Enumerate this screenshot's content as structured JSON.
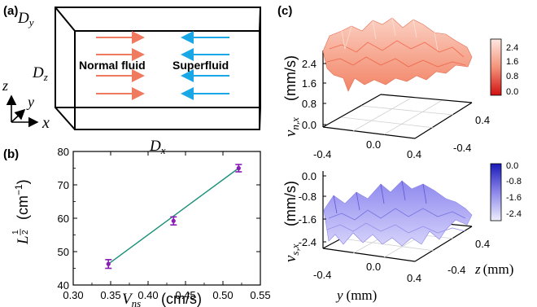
{
  "panel_a": {
    "label": "(a)",
    "box_labels": {
      "dy": "D",
      "dy_sub": "y",
      "dz": "D",
      "dz_sub": "z",
      "dx": "D",
      "dx_sub": "x"
    },
    "axis_labels": {
      "z": "z",
      "y": "y",
      "x": "x"
    },
    "normal_fluid": "Normal fluid",
    "superfluid": "Superfluid",
    "colors": {
      "normal_arrow": "#f07a5f",
      "super_arrow": "#1aa7e6"
    }
  },
  "panel_b": {
    "label": "(b)",
    "xlabel": "V",
    "xlabel_sub": "ns",
    "xlabel_unit": "(cm/s)",
    "ylabel": "L",
    "ylabel_exp_num": "1",
    "ylabel_exp_den": "2",
    "ylabel_unit_pre": "(cm",
    "ylabel_unit_exp": "−1",
    "ylabel_unit_post": ")",
    "xticks": [
      "0.30",
      "0.35",
      "0.40",
      "0.45",
      "0.50",
      "0.55"
    ],
    "yticks": [
      "40",
      "50",
      "60",
      "70",
      "80"
    ],
    "colors": {
      "point": "#8a1bb5",
      "fit": "#1a8f7a"
    }
  },
  "chart_data": {
    "type": "scatter",
    "xlim": [
      0.3,
      0.55
    ],
    "ylim": [
      40,
      80
    ],
    "x": [
      0.347,
      0.434,
      0.521
    ],
    "y": [
      46.3,
      59.2,
      75.0
    ],
    "yerr": [
      1.3,
      1.2,
      1.1
    ],
    "fit": {
      "x": [
        0.347,
        0.521
      ],
      "y": [
        46.3,
        75.0
      ]
    }
  },
  "panel_c": {
    "label": "(c)",
    "top": {
      "zlabel": "v",
      "zlabel_sub": "n,x",
      "zlabel_unit": "(mm/s)",
      "zticks": [
        "2.4",
        "1.6",
        "0.8",
        "0.0"
      ],
      "yticks": [
        "-0.4",
        "0.0",
        "0.4"
      ],
      "zaxis_ticks": [
        "0.4",
        "-0.4"
      ],
      "colorbar_ticks": [
        "2.4",
        "1.6",
        "0.8",
        "0.0"
      ],
      "colors": {
        "surface": "#f59a84",
        "bar_top": "#fde8e2",
        "bar_bottom": "#d21010"
      }
    },
    "bottom": {
      "zlabel": "v",
      "zlabel_sub": "s,x",
      "zlabel_unit": "(mm/s)",
      "zticks": [
        "0.0",
        "-0.8",
        "-1.6",
        "-2.4"
      ],
      "yticks": [
        "-0.4",
        "0.0",
        "0.4"
      ],
      "zaxis_ticks": [
        "0.4",
        "-0.4"
      ],
      "ylabel": "y",
      "ylabel_unit": "(mm)",
      "zaxis_label": "z",
      "zaxis_unit": "(mm)",
      "colorbar_ticks": [
        "0.0",
        "-0.8",
        "-1.6",
        "-2.4"
      ],
      "colors": {
        "surface": "#a9a4f2",
        "bar_top": "#1a1ab8",
        "bar_bottom": "#eeeefc"
      }
    }
  }
}
